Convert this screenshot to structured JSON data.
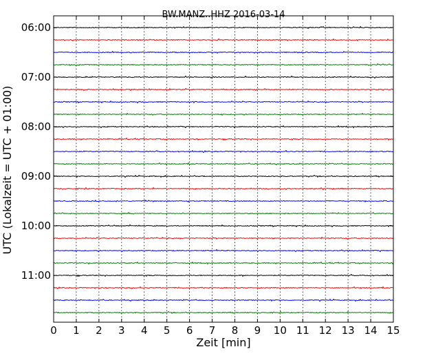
{
  "chart_data": {
    "type": "line",
    "title": "BW.MANZ..HHZ 2016-03-14",
    "xlabel": "Zeit  [min]",
    "ylabel": "UTC (Lokalzeit = UTC + 01:00)",
    "xlim": [
      0,
      15
    ],
    "x_ticks": [
      0,
      1,
      2,
      3,
      4,
      5,
      6,
      7,
      8,
      9,
      10,
      11,
      12,
      13,
      14,
      15
    ],
    "x_tick_labels": [
      "0",
      "1",
      "2",
      "3",
      "4",
      "5",
      "6",
      "7",
      "8",
      "9",
      "10",
      "11",
      "12",
      "13",
      "14",
      "15"
    ],
    "y_tick_labels": [
      "06:00",
      "07:00",
      "08:00",
      "09:00",
      "10:00",
      "11:00"
    ],
    "grid": "vertical-dotted",
    "trace_interval_min": 15,
    "trace_start_times": [
      "06:00",
      "06:15",
      "06:30",
      "06:45",
      "07:00",
      "07:15",
      "07:30",
      "07:45",
      "08:00",
      "08:15",
      "08:30",
      "08:45",
      "09:00",
      "09:15",
      "09:30",
      "09:45",
      "10:00",
      "10:15",
      "10:30",
      "10:45",
      "11:00",
      "11:15",
      "11:30",
      "11:45"
    ],
    "trace_colors": [
      "#000000",
      "#ff0000",
      "#0000ff",
      "#008000"
    ]
  }
}
